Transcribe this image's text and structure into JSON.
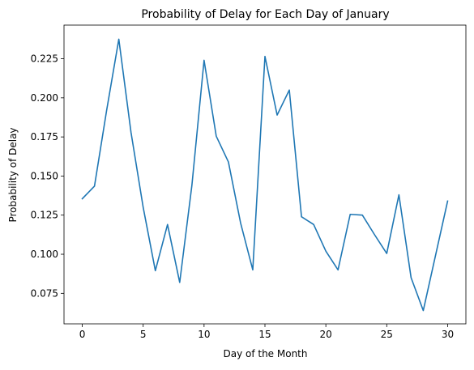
{
  "chart_data": {
    "type": "line",
    "title": "Probability of Delay for Each Day of January",
    "xlabel": "Day of the Month",
    "ylabel": "Probability of Delay",
    "xlim": [
      -1.5,
      31.5
    ],
    "ylim": [
      0.0555,
      0.2465
    ],
    "xticks": [
      0,
      5,
      10,
      15,
      20,
      25,
      30
    ],
    "xtick_labels": [
      "0",
      "5",
      "10",
      "15",
      "20",
      "25",
      "30"
    ],
    "yticks": [
      0.075,
      0.1,
      0.125,
      0.15,
      0.175,
      0.2,
      0.225
    ],
    "ytick_labels": [
      "0.075",
      "0.100",
      "0.125",
      "0.150",
      "0.175",
      "0.200",
      "0.225"
    ],
    "grid": false,
    "series": [
      {
        "color": "#1f77b4",
        "x": [
          0,
          1,
          2,
          3,
          4,
          5,
          6,
          7,
          8,
          9,
          10,
          11,
          12,
          13,
          14,
          15,
          16,
          17,
          18,
          19,
          20,
          21,
          22,
          23,
          24,
          25,
          26,
          27,
          28,
          29,
          30
        ],
        "y": [
          0.1355,
          0.1435,
          0.192,
          0.2375,
          0.178,
          0.13,
          0.0895,
          0.119,
          0.082,
          0.144,
          0.224,
          0.1755,
          0.159,
          0.12,
          0.09,
          0.2265,
          0.189,
          0.205,
          0.124,
          0.119,
          0.102,
          0.09,
          0.1255,
          0.125,
          0.1125,
          0.1005,
          0.138,
          0.085,
          0.064,
          0.099,
          0.134
        ]
      }
    ]
  }
}
